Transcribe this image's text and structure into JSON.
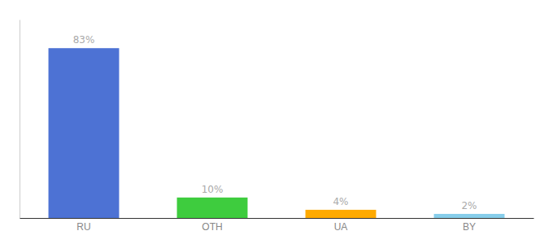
{
  "chart_data": {
    "type": "bar",
    "categories": [
      "RU",
      "OTH",
      "UA",
      "BY"
    ],
    "values": [
      83,
      10,
      4,
      2
    ],
    "value_labels": [
      "83%",
      "10%",
      "4%",
      "2%"
    ],
    "colors": [
      "#4d72d4",
      "#3ecc3e",
      "#ffaa00",
      "#87CEEB"
    ],
    "ylim": [
      0,
      97
    ],
    "yticks": [],
    "data_labels": true,
    "tick_labels": "x",
    "grid": false
  }
}
